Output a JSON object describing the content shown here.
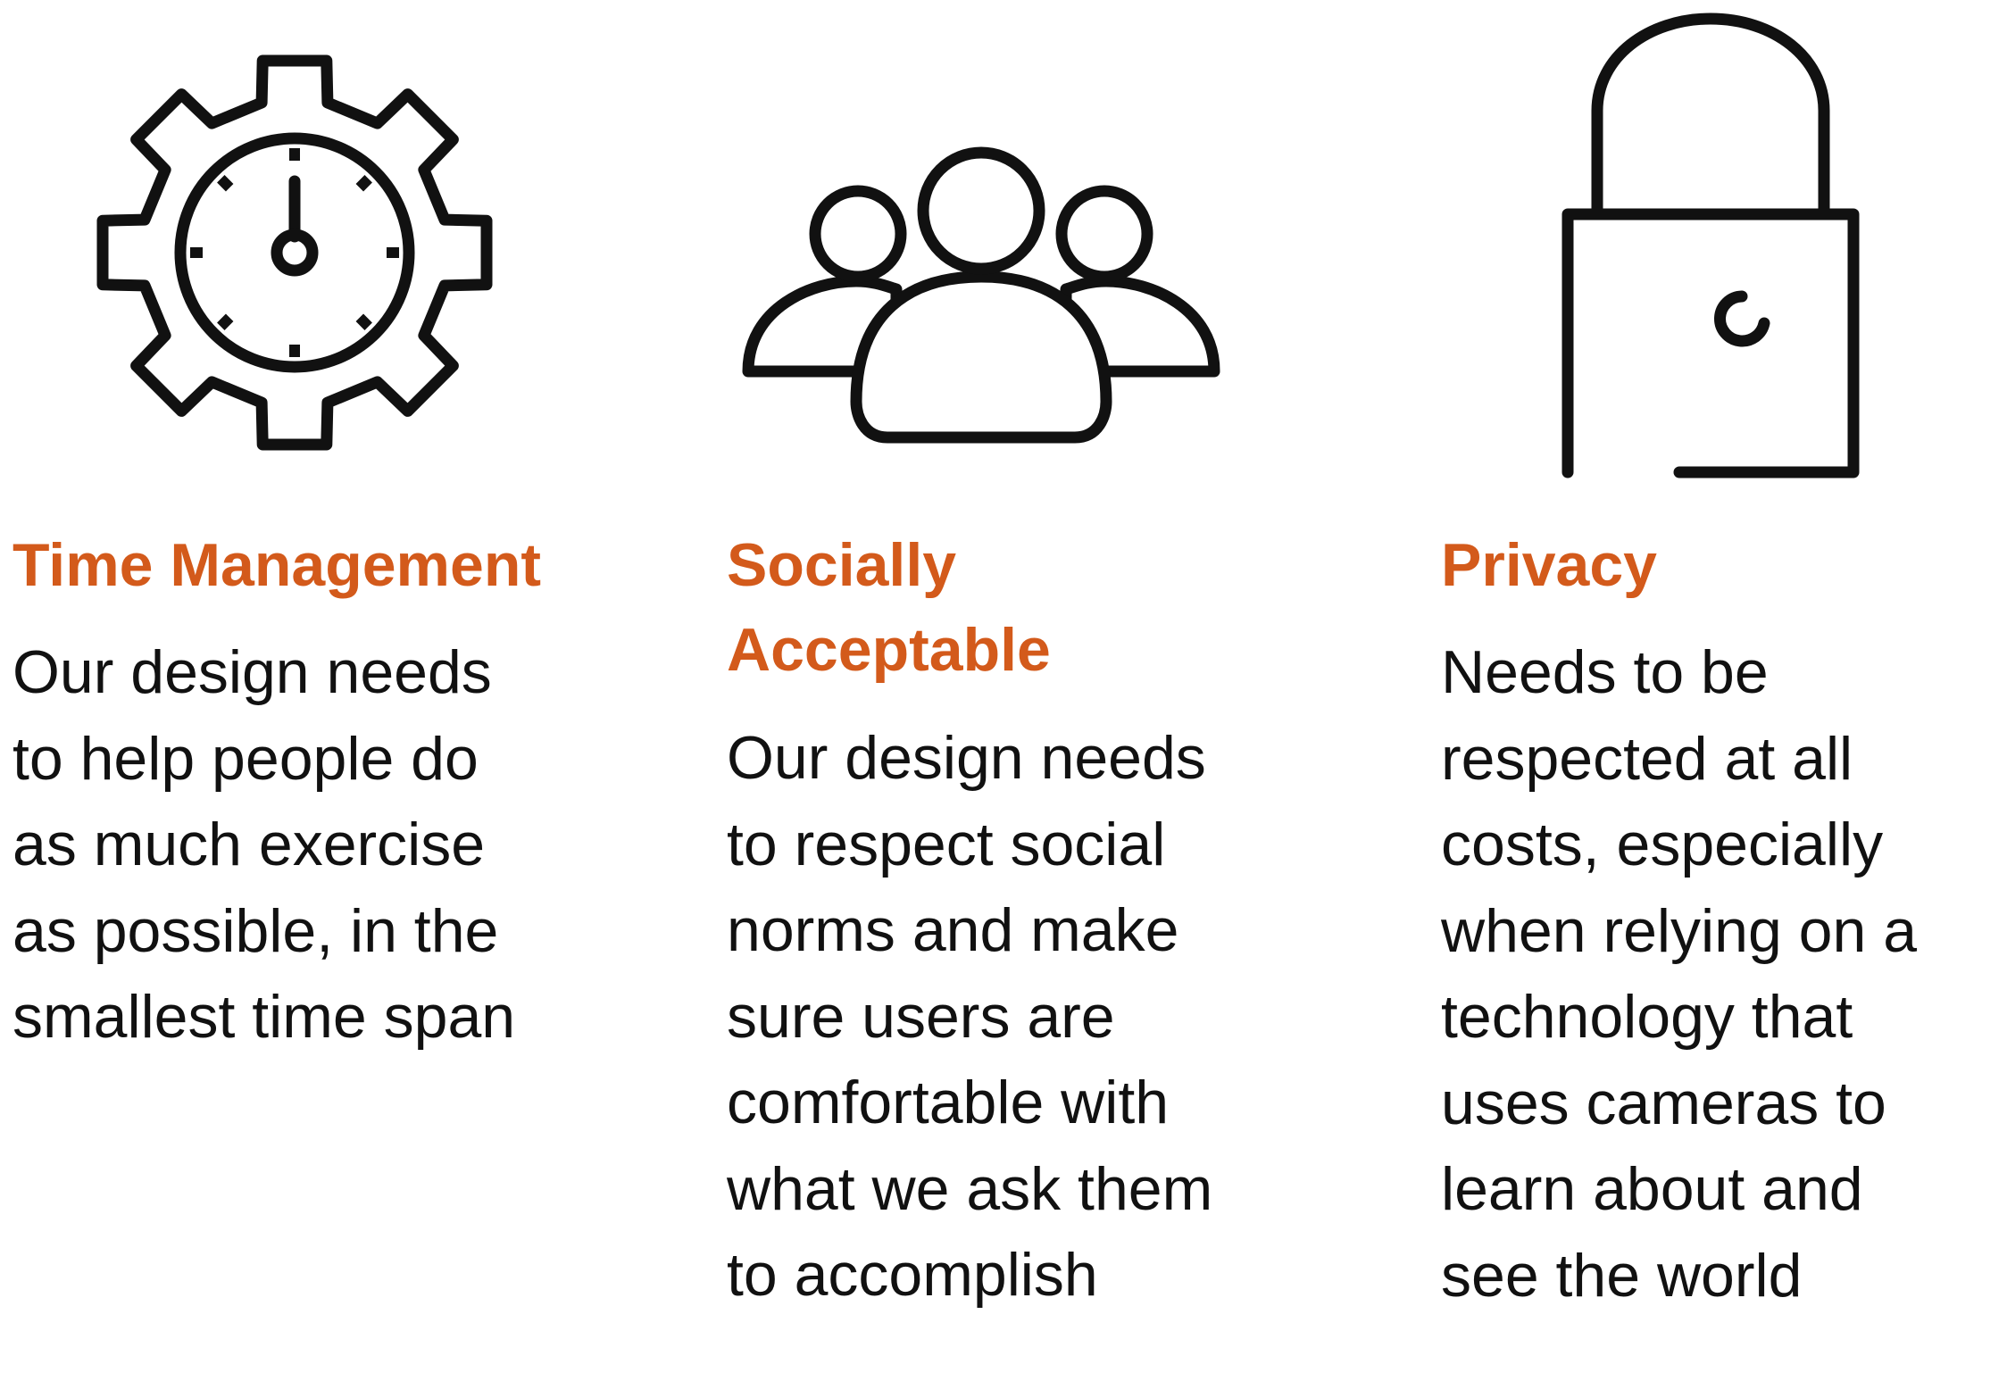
{
  "accent_color": "#d35a1b",
  "text_color": "#111111",
  "columns": [
    {
      "icon": "gear-clock-icon",
      "heading": "Time Management",
      "body": "Our design needs\nto help people do\nas much exercise\nas possible, in the\nsmallest time span"
    },
    {
      "icon": "group-people-icon",
      "heading": "Socially\nAcceptable",
      "body": "Our design needs\nto respect social\nnorms and make\nsure users are\ncomfortable with\nwhat we ask them\nto accomplish"
    },
    {
      "icon": "padlock-icon",
      "heading": "Privacy",
      "body": "Needs to be\nrespected at all\ncosts, especially\nwhen relying on a\ntechnology that\nuses cameras to\nlearn about and\nsee the world"
    }
  ]
}
